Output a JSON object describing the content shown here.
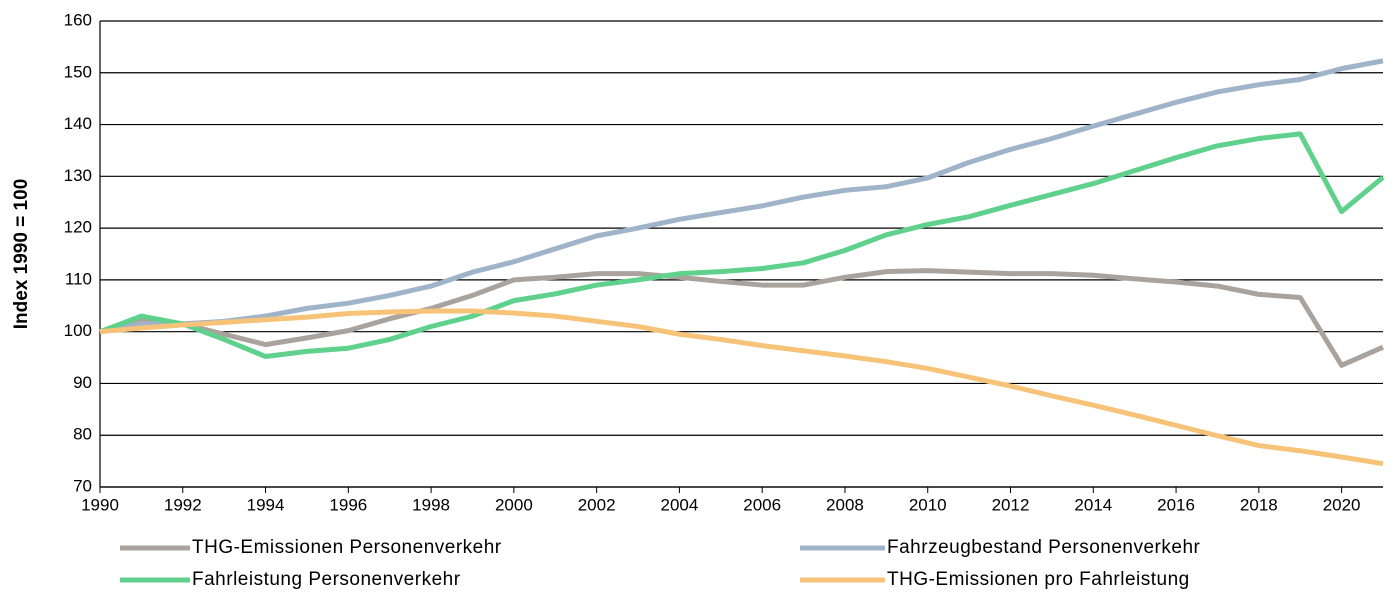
{
  "chart_data": {
    "type": "line",
    "ylabel": "Index 1990 = 100",
    "x": [
      1990,
      1991,
      1992,
      1993,
      1994,
      1995,
      1996,
      1997,
      1998,
      1999,
      2000,
      2001,
      2002,
      2003,
      2004,
      2005,
      2006,
      2007,
      2008,
      2009,
      2010,
      2011,
      2012,
      2013,
      2014,
      2015,
      2016,
      2017,
      2018,
      2019,
      2020,
      2021
    ],
    "series": [
      {
        "name": "THG-Emissionen Personenverkehr",
        "color": "#aaa39d",
        "values": [
          100,
          102.5,
          101.5,
          99.5,
          97.5,
          98.8,
          100.2,
          102.5,
          104.5,
          107,
          110,
          110.5,
          111.2,
          111.2,
          110.5,
          109.7,
          109,
          109,
          110.5,
          111.6,
          111.8,
          111.5,
          111.2,
          111.2,
          110.9,
          110.2,
          109.6,
          108.8,
          107.2,
          106.6,
          93.5,
          97
        ]
      },
      {
        "name": "Fahrzeugbestand Personenverkehr",
        "color": "#9fb4c9",
        "values": [
          100,
          101.5,
          101.5,
          102,
          103,
          104.5,
          105.5,
          107,
          108.8,
          111.5,
          113.5,
          116,
          118.5,
          120,
          121.7,
          123,
          124.3,
          126,
          127.3,
          128,
          129.7,
          132.7,
          135.2,
          137.3,
          139.7,
          142,
          144.3,
          146.3,
          147.7,
          148.7,
          150.8,
          152.3
        ]
      },
      {
        "name": "Fahrleistung Personenverkehr",
        "color": "#5fd18c",
        "values": [
          100,
          103,
          101.5,
          98.5,
          95.2,
          96.2,
          96.8,
          98.5,
          101,
          103,
          106,
          107.3,
          109,
          110,
          111.2,
          111.6,
          112.2,
          113.3,
          115.7,
          118.7,
          120.7,
          122.2,
          124.4,
          126.5,
          128.6,
          131.1,
          133.6,
          135.9,
          137.3,
          138.2,
          123.2,
          129.8
        ]
      },
      {
        "name": "THG-Emissionen pro Fahrleistung",
        "color": "#f6c379",
        "values": [
          100,
          100.7,
          101.3,
          101.8,
          102.3,
          102.8,
          103.5,
          103.8,
          104,
          104,
          103.6,
          103,
          102,
          101,
          99.5,
          98.5,
          97.3,
          96.3,
          95.3,
          94.2,
          92.9,
          91.2,
          89.5,
          87.6,
          85.8,
          83.9,
          81.9,
          79.9,
          78,
          77,
          75.8,
          74.5
        ]
      }
    ],
    "xlim": [
      1990,
      2021
    ],
    "ylim": [
      70,
      160
    ],
    "xticks": [
      1990,
      1992,
      1994,
      1996,
      1998,
      2000,
      2002,
      2004,
      2006,
      2008,
      2010,
      2012,
      2014,
      2016,
      2018,
      2020
    ],
    "yticks": [
      70,
      80,
      90,
      100,
      110,
      120,
      130,
      140,
      150,
      160
    ],
    "grid": true
  }
}
